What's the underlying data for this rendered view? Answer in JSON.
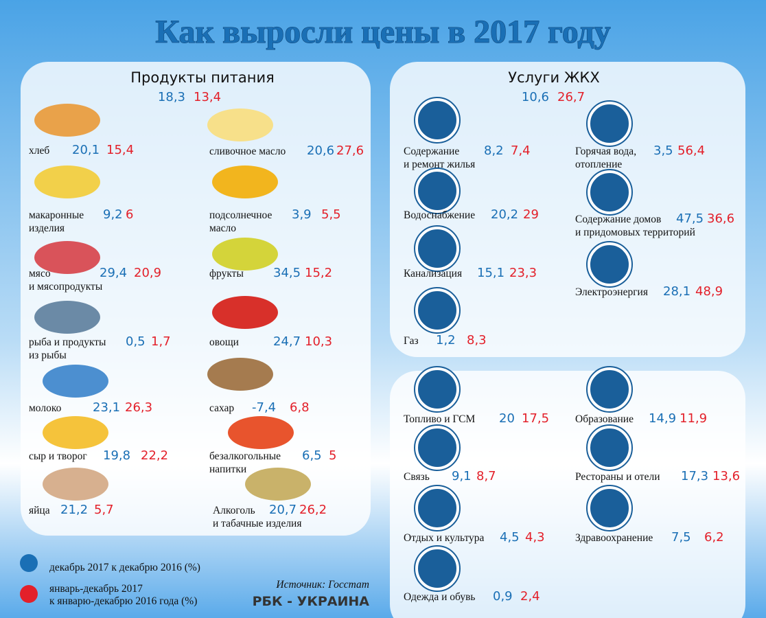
{
  "header": {
    "title": "Как выросли цены в 2017 году"
  },
  "food": {
    "title": "Продукты питания",
    "dec": "18,3",
    "year": "13,4",
    "items": [
      {
        "lines": [
          "хлеб"
        ],
        "dec": "20,1",
        "year": "15,4"
      },
      {
        "lines": [
          "макаронные",
          "изделия"
        ],
        "dec": "9,2",
        "year": "6"
      },
      {
        "lines": [
          "мясо",
          "и мясопродукты"
        ],
        "dec": "29,4",
        "year": "20,9"
      },
      {
        "lines": [
          "рыба и продукты",
          "из рыбы"
        ],
        "dec": "0,5",
        "year": "1,7"
      },
      {
        "lines": [
          "молоко"
        ],
        "dec": "23,1",
        "year": "26,3"
      },
      {
        "lines": [
          "сыр и творог"
        ],
        "dec": "19,8",
        "year": "22,2"
      },
      {
        "lines": [
          "яйца"
        ],
        "dec": "21,2",
        "year": "5,7"
      },
      {
        "lines": [
          "сливочное масло"
        ],
        "dec": "20,6",
        "year": "27,6"
      },
      {
        "lines": [
          "подсолнечное",
          "масло"
        ],
        "dec": "3,9",
        "year": "5,5"
      },
      {
        "lines": [
          "фрукты"
        ],
        "dec": "34,5",
        "year": "15,2"
      },
      {
        "lines": [
          "овощи"
        ],
        "dec": "24,7",
        "year": "10,3"
      },
      {
        "lines": [
          "сахар"
        ],
        "dec": "-7,4",
        "year": "6,8"
      },
      {
        "lines": [
          "безалкогольные",
          "напитки"
        ],
        "dec": "6,5",
        "year": "5"
      },
      {
        "lines": [
          "Алкоголь",
          "и табачные изделия"
        ],
        "dec": "20,7",
        "year": "26,2"
      }
    ]
  },
  "utilities": {
    "title": "Услуги ЖКХ",
    "dec": "10,6",
    "year": "26,7",
    "items": [
      {
        "lines": [
          "Содержание",
          "и ремонт жилья"
        ],
        "dec": "8,2",
        "year": "7,4"
      },
      {
        "lines": [
          "Водоснабжение"
        ],
        "dec": "20,2",
        "year": "29"
      },
      {
        "lines": [
          "Канализация"
        ],
        "dec": "15,1",
        "year": "23,3"
      },
      {
        "lines": [
          "Газ"
        ],
        "dec": "1,2",
        "year": "8,3"
      },
      {
        "lines": [
          "Горячая вода,",
          "отопление"
        ],
        "dec": "3,5",
        "year": "56,4"
      },
      {
        "lines": [
          "Содержание домов",
          "и придомовых территорий"
        ],
        "dec": "47,5",
        "year": "36,6"
      },
      {
        "lines": [
          "Электроэнергия"
        ],
        "dec": "28,1",
        "year": "48,9"
      }
    ]
  },
  "services": {
    "items": [
      {
        "lines": [
          "Топливо и ГСМ"
        ],
        "dec": "20",
        "year": "17,5"
      },
      {
        "lines": [
          "Связь"
        ],
        "dec": "9,1",
        "year": "8,7"
      },
      {
        "lines": [
          "Отдых и культура"
        ],
        "dec": "4,5",
        "year": "4,3"
      },
      {
        "lines": [
          "Одежда и обувь"
        ],
        "dec": "0,9",
        "year": "2,4"
      },
      {
        "lines": [
          "Образование"
        ],
        "dec": "14,9",
        "year": "11,9"
      },
      {
        "lines": [
          "Рестораны и отели"
        ],
        "dec": "17,3",
        "year": "13,6"
      },
      {
        "lines": [
          "Здравоохранение"
        ],
        "dec": "7,5",
        "year": "6,2"
      }
    ]
  },
  "legend": {
    "dec": [
      "декабрь 2017 к декабрю 2016 (%)"
    ],
    "year": [
      "январь-декабрь 2017",
      "к январю-декабрю 2016 года (%)"
    ]
  },
  "footer": {
    "source": "Источник: Госстат",
    "brand": "РБК - УКРАИНА"
  }
}
